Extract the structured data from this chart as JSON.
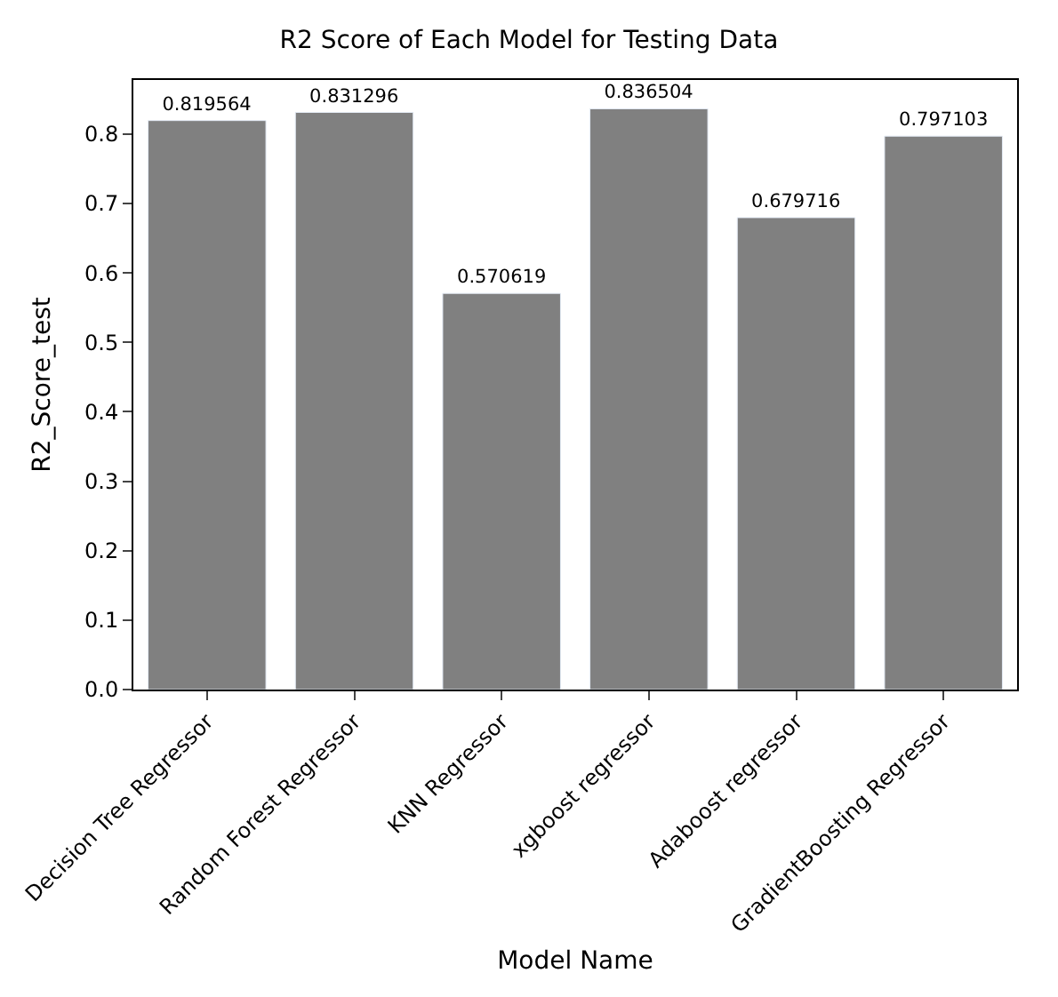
{
  "chart_data": {
    "type": "bar",
    "title": "R2 Score of Each Model for Testing Data",
    "xlabel": "Model Name",
    "ylabel": "R2_Score_test",
    "categories": [
      "Decision Tree Regressor",
      "Random Forest Regressor",
      "KNN Regressor",
      "xgboost regressor",
      "Adaboost regressor",
      "GradientBoosting Regressor"
    ],
    "values": [
      0.819564,
      0.831296,
      0.570619,
      0.836504,
      0.679716,
      0.797103
    ],
    "color": "#808080",
    "ylim": [
      0,
      0.878
    ],
    "yticks": [
      {
        "value": 0,
        "label": "0.0"
      },
      0.1,
      0.2,
      0.3,
      0.4,
      0.5,
      0.6,
      0.7,
      0.8
    ],
    "data_labels": true
  }
}
